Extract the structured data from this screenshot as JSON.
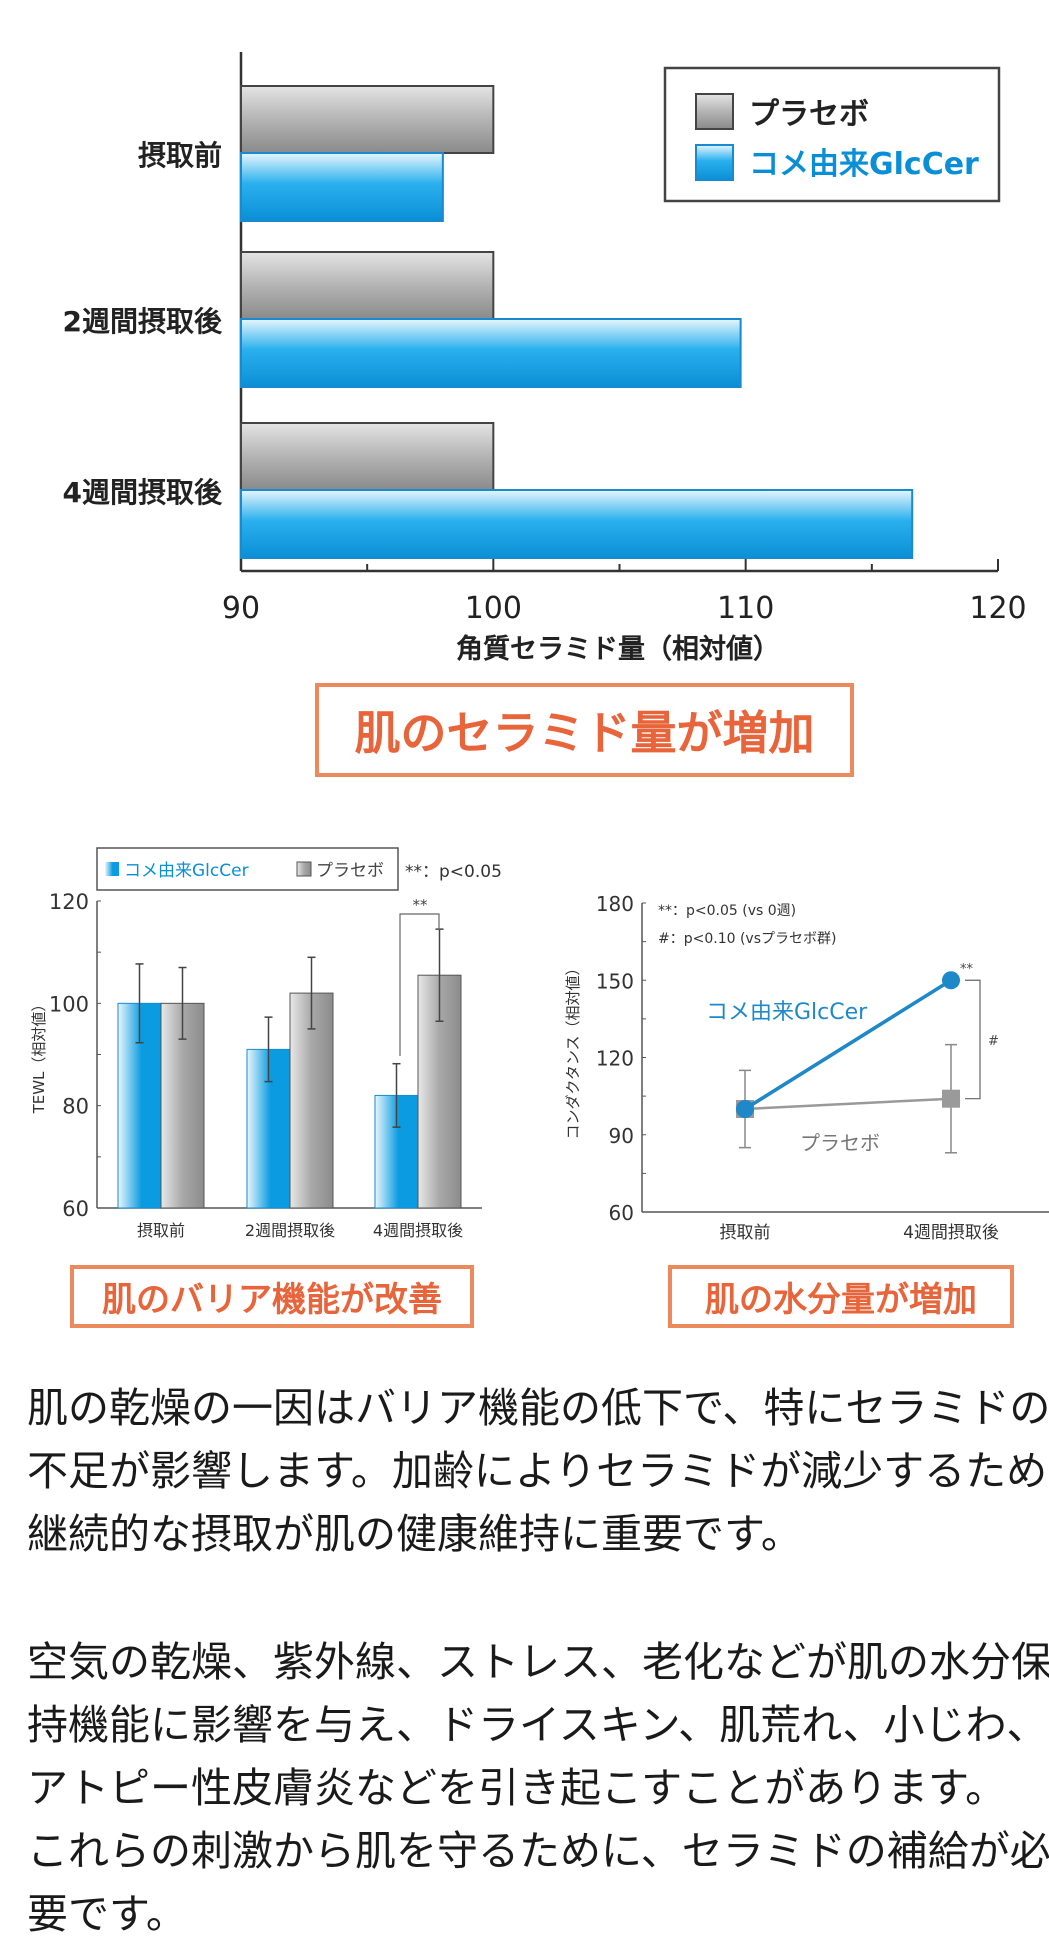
{
  "colors": {
    "blue": "#0a9be0",
    "gray": "#8a8a8a",
    "accent": "#ec8a5e",
    "accent_text": "#e8643a",
    "line_blue": "#1e88c8"
  },
  "chart_data": [
    {
      "type": "bar",
      "orientation": "horizontal",
      "categories": [
        "摂取前",
        "2週間摂取後",
        "4週間摂取後"
      ],
      "series": [
        {
          "name": "プラセボ",
          "values": [
            100,
            100,
            100
          ]
        },
        {
          "name": "コメ由来GlcCer",
          "values": [
            98,
            109.8,
            116.6
          ]
        }
      ],
      "xlabel": "角質セラミド量（相対値）",
      "xlim": [
        90,
        120
      ],
      "xticks": [
        "90",
        "100",
        "110",
        "120"
      ],
      "legend": "top-right",
      "grid": false
    },
    {
      "type": "bar",
      "categories": [
        "摂取前",
        "2週間摂取後",
        "4週間摂取後"
      ],
      "series": [
        {
          "name": "コメ由来GlcCer",
          "values": [
            100,
            91,
            82
          ],
          "errors": [
            7.7,
            6.3,
            6.2
          ]
        },
        {
          "name": "プラセボ",
          "values": [
            100,
            102,
            105.5
          ],
          "errors": [
            7,
            7,
            9
          ]
        }
      ],
      "ylabel": "TEWL（相対値）",
      "ylim": [
        60,
        120
      ],
      "yticks": [
        "60",
        "80",
        "100",
        "120"
      ],
      "legend": "top",
      "significance_note": "**：p<0.05",
      "significance_mark": "**",
      "grid": false
    },
    {
      "type": "line",
      "categories": [
        "摂取前",
        "4週間摂取後"
      ],
      "series": [
        {
          "name": "コメ由来GlcCer",
          "values": [
            100,
            150
          ],
          "errors": [
            15,
            19
          ]
        },
        {
          "name": "プラセボ",
          "values": [
            100,
            104
          ],
          "errors": [
            15,
            21
          ]
        }
      ],
      "ylabel": "コンダクタンス（相対値）",
      "ylim": [
        60,
        180
      ],
      "yticks": [
        "60",
        "90",
        "120",
        "150",
        "180"
      ],
      "notes": [
        "**：p<0.05 (vs 0週)",
        "#：p<0.10 (vsプラセボ群)"
      ],
      "marks": [
        "**",
        "#"
      ],
      "grid": false
    }
  ],
  "callouts": [
    "肌のセラミド量が増加",
    "肌のバリア機能が改善",
    "肌の水分量が増加"
  ],
  "paragraphs": [
    [
      "肌の乾燥の一因はバリア機能の低下で、特にセラミドの",
      "不足が影響します。加齢によりセラミドが減少するため、",
      "継続的な摂取が肌の健康維持に重要です。"
    ],
    [
      "空気の乾燥、紫外線、ストレス、老化などが肌の水分保",
      "持機能に影響を与え、ドライスキン、肌荒れ、小じわ、",
      "アトピー性皮膚炎などを引き起こすことがあります。",
      "これらの刺激から肌を守るために、セラミドの補給が必",
      "要です。"
    ]
  ]
}
